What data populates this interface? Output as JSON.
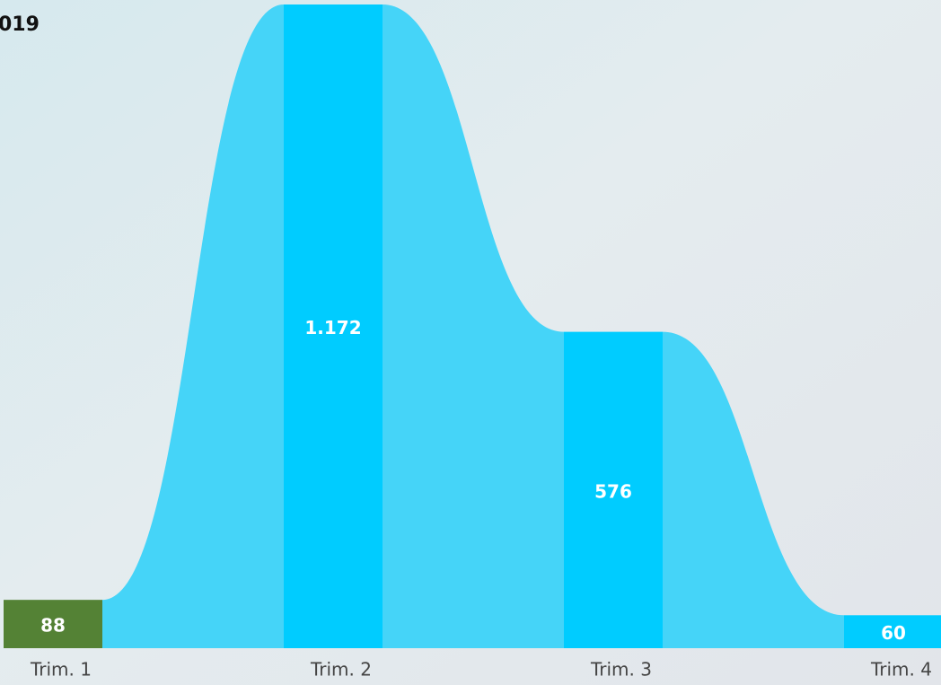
{
  "chart_data": {
    "type": "ribbon",
    "title": "019",
    "categories": [
      "Trim. 1",
      "Trim. 2",
      "Trim. 3",
      "Trim. 4"
    ],
    "values": [
      88,
      1172,
      576,
      60
    ],
    "value_labels": [
      "88",
      "1.172",
      "576",
      "60"
    ],
    "colors": [
      "#548235",
      "#00ccff",
      "#00ccff",
      "#00ccff"
    ],
    "ribbon_color": "#45d4f8"
  }
}
